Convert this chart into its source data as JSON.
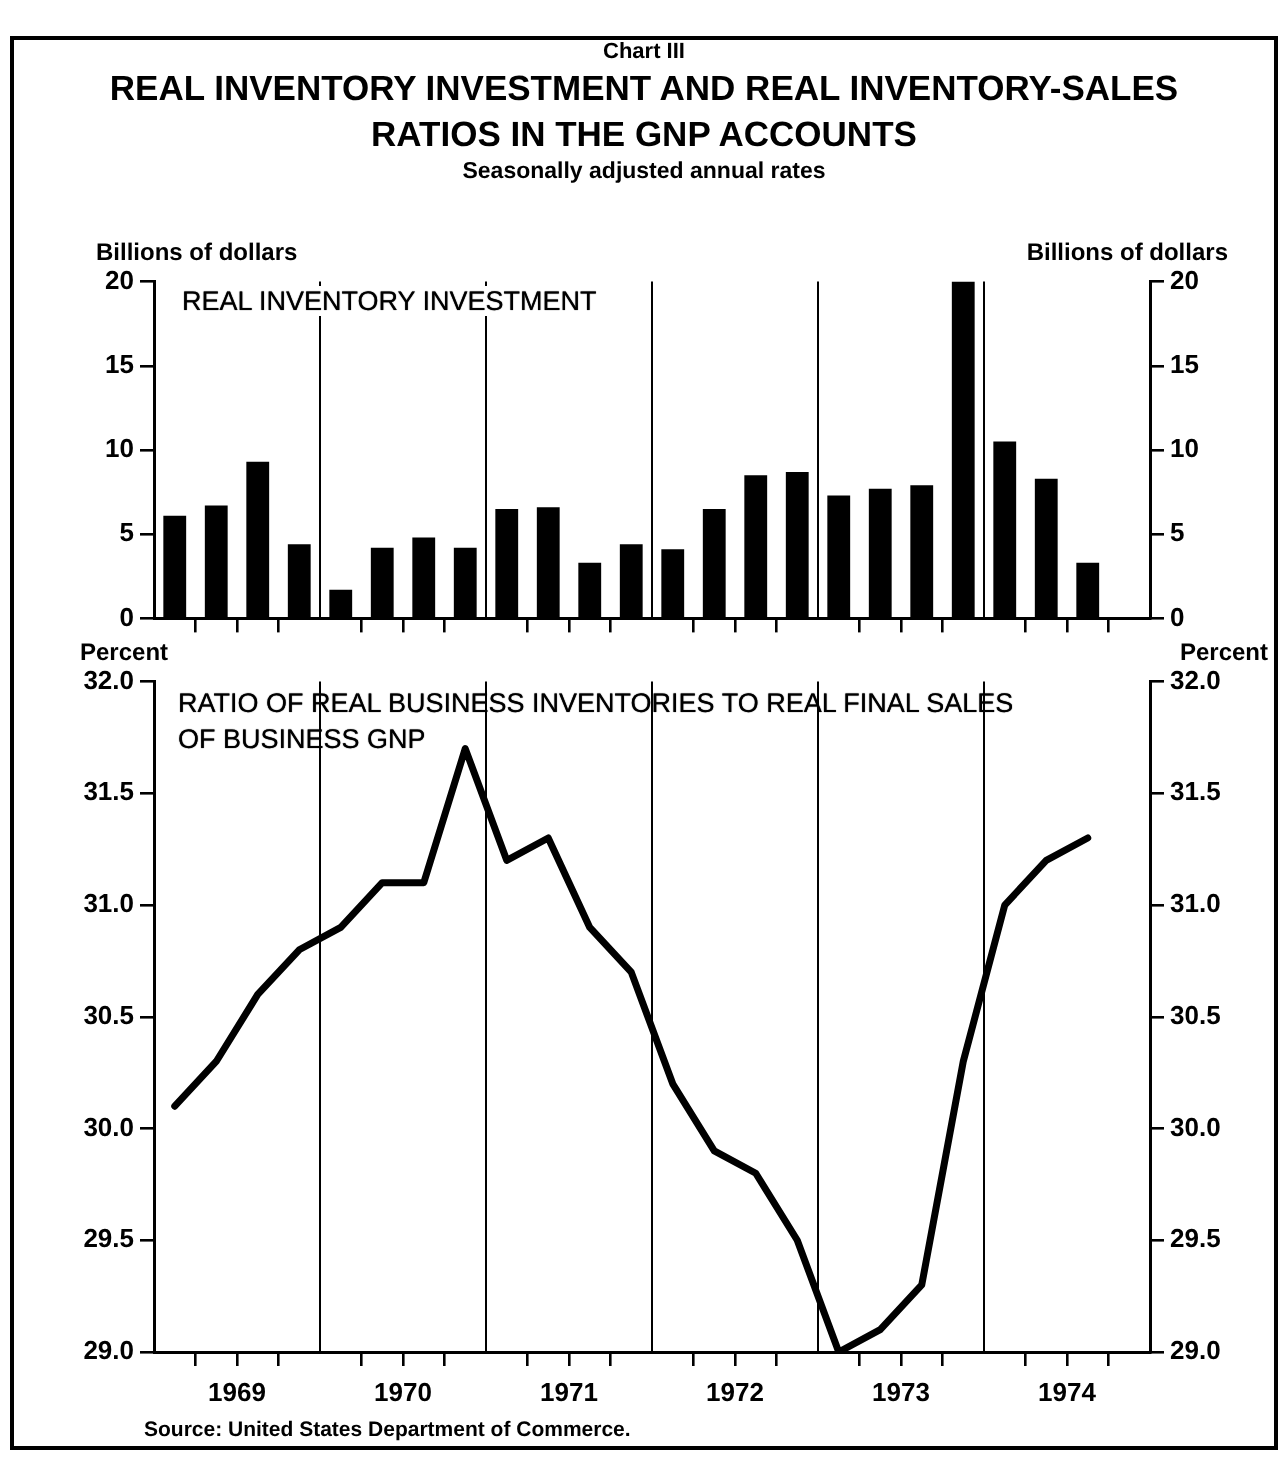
{
  "chart_data": [
    {
      "type": "bar",
      "title": "REAL INVENTORY INVESTMENT AND REAL INVENTORY-SALES RATIOS IN THE GNP ACCOUNTS",
      "subtitle": "Seasonally adjusted annual rates",
      "ylabel": "Billions of dollars",
      "y2label": "Billions of dollars",
      "annotations": [
        "Chart III",
        "REAL INVENTORY INVESTMENT"
      ],
      "x": [
        1969.125,
        1969.375,
        1969.625,
        1969.875,
        1970.125,
        1970.375,
        1970.625,
        1970.875,
        1971.125,
        1971.375,
        1971.625,
        1971.875,
        1972.125,
        1972.375,
        1972.625,
        1972.875,
        1973.125,
        1973.375,
        1973.625,
        1973.875,
        1974.125,
        1974.375,
        1974.625
      ],
      "values": [
        6.1,
        6.7,
        9.3,
        4.4,
        1.7,
        4.2,
        4.8,
        4.2,
        6.5,
        6.6,
        3.3,
        4.4,
        4.1,
        6.5,
        8.5,
        8.7,
        7.3,
        7.7,
        7.9,
        20,
        10.5,
        8.3,
        3.3
      ],
      "color": "#000000",
      "xlim": [
        1969,
        1975
      ],
      "xticks": [
        {
          "value": 1969.25,
          "label": null
        },
        {
          "value": 1969.5,
          "label": null
        },
        {
          "value": 1969.75,
          "label": null
        },
        {
          "value": 1970.25,
          "label": null
        },
        {
          "value": 1970.5,
          "label": null
        },
        {
          "value": 1970.75,
          "label": null
        },
        {
          "value": 1971.25,
          "label": null
        },
        {
          "value": 1971.5,
          "label": null
        },
        {
          "value": 1971.75,
          "label": null
        },
        {
          "value": 1972.25,
          "label": null
        },
        {
          "value": 1972.5,
          "label": null
        },
        {
          "value": 1972.75,
          "label": null
        },
        {
          "value": 1973.25,
          "label": null
        },
        {
          "value": 1973.5,
          "label": null
        },
        {
          "value": 1973.75,
          "label": null
        },
        {
          "value": 1974.25,
          "label": null
        },
        {
          "value": 1974.5,
          "label": null
        },
        {
          "value": 1974.75,
          "label": null
        }
      ],
      "ylim": [
        0,
        20
      ],
      "yticks": [
        0,
        5,
        10,
        15,
        20
      ],
      "y2lim": [
        0,
        20
      ],
      "y2ticks": [
        0,
        5,
        10,
        15,
        20
      ],
      "ref_lines": [
        {
          "axis": "x",
          "value": 1970,
          "color": "#000000"
        },
        {
          "axis": "x",
          "value": 1971,
          "color": "#000000"
        },
        {
          "axis": "x",
          "value": 1972,
          "color": "#000000"
        },
        {
          "axis": "x",
          "value": 1973,
          "color": "#000000"
        },
        {
          "axis": "x",
          "value": 1974,
          "color": "#000000"
        }
      ],
      "tick_labels": "y",
      "grid": false,
      "legend": false
    },
    {
      "type": "line",
      "title": "RATIO OF REAL BUSINESS INVENTORIES TO REAL FINAL SALES OF BUSINESS GNP",
      "ylabel": "Percent",
      "y2label": "Percent",
      "annotations": [
        "Source: United States Department of Commerce."
      ],
      "x": [
        1969.125,
        1969.375,
        1969.625,
        1969.875,
        1970.125,
        1970.375,
        1970.625,
        1970.875,
        1971.125,
        1971.375,
        1971.625,
        1971.875,
        1972.125,
        1972.375,
        1972.625,
        1972.875,
        1973.125,
        1973.375,
        1973.625,
        1973.875,
        1974.125,
        1974.375,
        1974.625
      ],
      "values": [
        30.1,
        30.3,
        30.6,
        30.8,
        30.9,
        31.1,
        31.1,
        31.7,
        31.2,
        31.3,
        30.9,
        30.7,
        30.2,
        29.9,
        29.8,
        29.5,
        29.0,
        29.1,
        29.3,
        30.3,
        31.0,
        31.2,
        31.3
      ],
      "color": "#000000",
      "marker": "none",
      "line_style": "solid",
      "xlim": [
        1969,
        1975
      ],
      "xticks": [
        {
          "value": 1969.25,
          "label": null
        },
        {
          "value": 1969.5,
          "label": "1969"
        },
        {
          "value": 1969.75,
          "label": null
        },
        {
          "value": 1970.25,
          "label": null
        },
        {
          "value": 1970.5,
          "label": "1970"
        },
        {
          "value": 1970.75,
          "label": null
        },
        {
          "value": 1971.25,
          "label": null
        },
        {
          "value": 1971.5,
          "label": "1971"
        },
        {
          "value": 1971.75,
          "label": null
        },
        {
          "value": 1972.25,
          "label": null
        },
        {
          "value": 1972.5,
          "label": "1972"
        },
        {
          "value": 1972.75,
          "label": null
        },
        {
          "value": 1973.25,
          "label": null
        },
        {
          "value": 1973.5,
          "label": "1973"
        },
        {
          "value": 1973.75,
          "label": null
        },
        {
          "value": 1974.25,
          "label": null
        },
        {
          "value": 1974.5,
          "label": "1974"
        },
        {
          "value": 1974.75,
          "label": null
        }
      ],
      "ylim": [
        29,
        32
      ],
      "yticks": [
        {
          "value": 29,
          "label": "29.0"
        },
        {
          "value": 29.5,
          "label": "29.5"
        },
        {
          "value": 30,
          "label": "30.0"
        },
        {
          "value": 30.5,
          "label": "30.5"
        },
        {
          "value": 31,
          "label": "31.0"
        },
        {
          "value": 31.5,
          "label": "31.5"
        },
        {
          "value": 32,
          "label": "32.0"
        }
      ],
      "y2lim": [
        29,
        32
      ],
      "y2ticks": [
        {
          "value": 29,
          "label": "29.0"
        },
        {
          "value": 29.5,
          "label": "29.5"
        },
        {
          "value": 30,
          "label": "30.0"
        },
        {
          "value": 30.5,
          "label": "30.5"
        },
        {
          "value": 31,
          "label": "31.0"
        },
        {
          "value": 31.5,
          "label": "31.5"
        },
        {
          "value": 32,
          "label": "32.0"
        }
      ],
      "ref_lines": [
        {
          "axis": "x",
          "value": 1970,
          "color": "#000000"
        },
        {
          "axis": "x",
          "value": 1971,
          "color": "#000000"
        },
        {
          "axis": "x",
          "value": 1972,
          "color": "#000000"
        },
        {
          "axis": "x",
          "value": 1973,
          "color": "#000000"
        },
        {
          "axis": "x",
          "value": 1974,
          "color": "#000000"
        }
      ],
      "grid": false,
      "legend": false
    }
  ]
}
